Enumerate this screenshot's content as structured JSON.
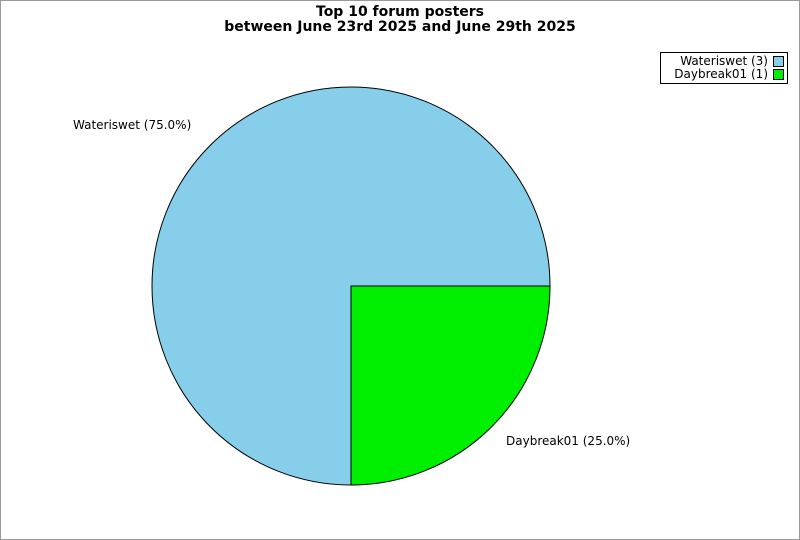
{
  "frame": {
    "border_color": "#999999",
    "background": "#ffffff"
  },
  "title": {
    "line1": "Top 10 forum posters",
    "line2": "between June 23rd 2025 and June 29th 2025"
  },
  "chart_data": {
    "type": "pie",
    "title": "Top 10 forum posters between June 23rd 2025 and June 29th 2025",
    "categories": [
      "Wateriswet",
      "Daybreak01"
    ],
    "values": [
      3,
      1
    ],
    "slices": [
      {
        "label": "Wateriswet",
        "count": 3,
        "percent": 75.0,
        "color": "#87CEEB",
        "callout": "Wateriswet (75.0%)"
      },
      {
        "label": "Daybreak01",
        "count": 1,
        "percent": 25.0,
        "color": "#00EE00",
        "callout": "Daybreak01 (25.0%)"
      }
    ],
    "start_angle_deg": 0,
    "direction": "counterclockwise",
    "outline_color": "#000000",
    "legend_position": "top-right"
  },
  "legend": {
    "items": [
      {
        "label": "Wateriswet (3)",
        "color": "#87CEEB"
      },
      {
        "label": "Daybreak01 (1)",
        "color": "#00EE00"
      }
    ]
  }
}
